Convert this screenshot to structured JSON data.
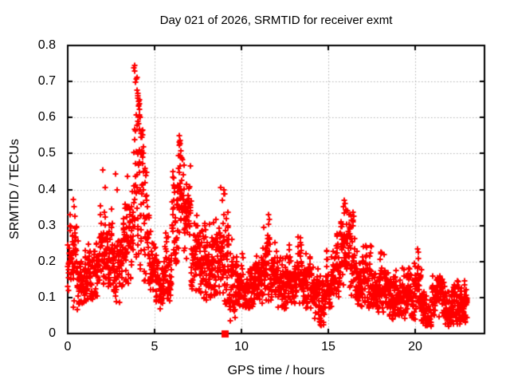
{
  "chart_data": {
    "type": "scatter",
    "title": "Day 021 of 2026, SRMTID for receiver exmt",
    "xlabel": "GPS time / hours",
    "ylabel": "SRMTID / TECUs",
    "xlim": [
      0,
      24
    ],
    "ylim": [
      0,
      0.8
    ],
    "xticks": [
      0,
      5,
      10,
      15,
      20
    ],
    "yticks": [
      0,
      0.1,
      0.2,
      0.3,
      0.4,
      0.5,
      0.6,
      0.7,
      0.8
    ],
    "xtick_labels": [
      "0",
      "5",
      "10",
      "15",
      "20"
    ],
    "ytick_labels": [
      "0",
      "0.1",
      "0.2",
      "0.3",
      "0.4",
      "0.5",
      "0.6",
      "0.7",
      "0.8"
    ],
    "grid": true,
    "legend": "none",
    "background": "#ffffff",
    "axis_color": "#000000",
    "grid_color": "#b3b3b3",
    "series": [
      {
        "name": "SRMTID",
        "marker": "plus",
        "color": "#ff0000",
        "samples_per_hour": 115,
        "time_range_hours": [
          0,
          23.0
        ],
        "envelope_bins": [
          {
            "t0": 0.0,
            "t1": 0.3,
            "mean": 0.2,
            "sd": 0.055,
            "min": 0.1,
            "max": 0.335
          },
          {
            "t0": 0.3,
            "t1": 0.6,
            "mean": 0.17,
            "sd": 0.06,
            "min": 0.065,
            "max": 0.375
          },
          {
            "t0": 0.6,
            "t1": 1.0,
            "mean": 0.165,
            "sd": 0.045,
            "min": 0.08,
            "max": 0.28
          },
          {
            "t0": 1.0,
            "t1": 1.4,
            "mean": 0.155,
            "sd": 0.04,
            "min": 0.09,
            "max": 0.26
          },
          {
            "t0": 1.4,
            "t1": 1.8,
            "mean": 0.18,
            "sd": 0.045,
            "min": 0.1,
            "max": 0.3
          },
          {
            "t0": 1.8,
            "t1": 2.2,
            "mean": 0.235,
            "sd": 0.06,
            "min": 0.12,
            "max": 0.43
          },
          {
            "t0": 2.2,
            "t1": 2.6,
            "mean": 0.245,
            "sd": 0.06,
            "min": 0.13,
            "max": 0.42
          },
          {
            "t0": 2.6,
            "t1": 3.0,
            "mean": 0.185,
            "sd": 0.05,
            "min": 0.08,
            "max": 0.33
          },
          {
            "t0": 3.0,
            "t1": 3.4,
            "mean": 0.22,
            "sd": 0.05,
            "min": 0.12,
            "max": 0.36
          },
          {
            "t0": 3.4,
            "t1": 3.8,
            "mean": 0.27,
            "sd": 0.07,
            "min": 0.14,
            "max": 0.46
          },
          {
            "t0": 3.8,
            "t1": 4.1,
            "mean": 0.45,
            "sd": 0.17,
            "min": 0.2,
            "max": 0.745
          },
          {
            "t0": 4.1,
            "t1": 4.35,
            "mean": 0.38,
            "sd": 0.15,
            "min": 0.17,
            "max": 0.7
          },
          {
            "t0": 4.35,
            "t1": 4.7,
            "mean": 0.28,
            "sd": 0.09,
            "min": 0.14,
            "max": 0.5
          },
          {
            "t0": 4.7,
            "t1": 5.1,
            "mean": 0.17,
            "sd": 0.05,
            "min": 0.09,
            "max": 0.29
          },
          {
            "t0": 5.1,
            "t1": 5.6,
            "mean": 0.13,
            "sd": 0.04,
            "min": 0.065,
            "max": 0.21
          },
          {
            "t0": 5.6,
            "t1": 6.0,
            "mean": 0.17,
            "sd": 0.05,
            "min": 0.09,
            "max": 0.28
          },
          {
            "t0": 6.0,
            "t1": 6.3,
            "mean": 0.3,
            "sd": 0.08,
            "min": 0.17,
            "max": 0.46
          },
          {
            "t0": 6.3,
            "t1": 6.7,
            "mean": 0.4,
            "sd": 0.08,
            "min": 0.23,
            "max": 0.55
          },
          {
            "t0": 6.7,
            "t1": 7.1,
            "mean": 0.32,
            "sd": 0.07,
            "min": 0.17,
            "max": 0.47
          },
          {
            "t0": 7.1,
            "t1": 7.5,
            "mean": 0.22,
            "sd": 0.055,
            "min": 0.12,
            "max": 0.36
          },
          {
            "t0": 7.5,
            "t1": 8.1,
            "mean": 0.18,
            "sd": 0.055,
            "min": 0.09,
            "max": 0.37
          },
          {
            "t0": 8.1,
            "t1": 8.5,
            "mean": 0.2,
            "sd": 0.05,
            "min": 0.1,
            "max": 0.31
          },
          {
            "t0": 8.5,
            "t1": 9.0,
            "mean": 0.24,
            "sd": 0.065,
            "min": 0.11,
            "max": 0.41
          },
          {
            "t0": 9.0,
            "t1": 9.3,
            "mean": 0.2,
            "sd": 0.07,
            "min": 0.08,
            "max": 0.4
          },
          {
            "t0": 9.3,
            "t1": 9.7,
            "mean": 0.13,
            "sd": 0.05,
            "min": 0.03,
            "max": 0.3
          },
          {
            "t0": 9.7,
            "t1": 10.2,
            "mean": 0.145,
            "sd": 0.04,
            "min": 0.07,
            "max": 0.25
          },
          {
            "t0": 10.2,
            "t1": 10.7,
            "mean": 0.135,
            "sd": 0.035,
            "min": 0.07,
            "max": 0.22
          },
          {
            "t0": 10.7,
            "t1": 11.2,
            "mean": 0.15,
            "sd": 0.04,
            "min": 0.08,
            "max": 0.25
          },
          {
            "t0": 11.2,
            "t1": 11.7,
            "mean": 0.17,
            "sd": 0.055,
            "min": 0.09,
            "max": 0.33
          },
          {
            "t0": 11.7,
            "t1": 12.1,
            "mean": 0.15,
            "sd": 0.045,
            "min": 0.08,
            "max": 0.26
          },
          {
            "t0": 12.1,
            "t1": 12.6,
            "mean": 0.125,
            "sd": 0.035,
            "min": 0.06,
            "max": 0.21
          },
          {
            "t0": 12.6,
            "t1": 13.0,
            "mean": 0.15,
            "sd": 0.04,
            "min": 0.08,
            "max": 0.25
          },
          {
            "t0": 13.0,
            "t1": 13.5,
            "mean": 0.165,
            "sd": 0.045,
            "min": 0.08,
            "max": 0.27
          },
          {
            "t0": 13.5,
            "t1": 14.0,
            "mean": 0.135,
            "sd": 0.04,
            "min": 0.06,
            "max": 0.23
          },
          {
            "t0": 14.0,
            "t1": 14.45,
            "mean": 0.115,
            "sd": 0.04,
            "min": 0.04,
            "max": 0.21
          },
          {
            "t0": 14.45,
            "t1": 14.8,
            "mean": 0.09,
            "sd": 0.04,
            "min": 0.02,
            "max": 0.17
          },
          {
            "t0": 14.8,
            "t1": 15.3,
            "mean": 0.145,
            "sd": 0.04,
            "min": 0.07,
            "max": 0.24
          },
          {
            "t0": 15.3,
            "t1": 15.7,
            "mean": 0.19,
            "sd": 0.055,
            "min": 0.1,
            "max": 0.31
          },
          {
            "t0": 15.7,
            "t1": 16.2,
            "mean": 0.25,
            "sd": 0.06,
            "min": 0.13,
            "max": 0.37
          },
          {
            "t0": 16.2,
            "t1": 16.6,
            "mean": 0.21,
            "sd": 0.06,
            "min": 0.1,
            "max": 0.34
          },
          {
            "t0": 16.6,
            "t1": 17.0,
            "mean": 0.15,
            "sd": 0.04,
            "min": 0.07,
            "max": 0.24
          },
          {
            "t0": 17.0,
            "t1": 17.5,
            "mean": 0.15,
            "sd": 0.045,
            "min": 0.07,
            "max": 0.245
          },
          {
            "t0": 17.5,
            "t1": 18.0,
            "mean": 0.125,
            "sd": 0.04,
            "min": 0.05,
            "max": 0.22
          },
          {
            "t0": 18.0,
            "t1": 18.5,
            "mean": 0.135,
            "sd": 0.04,
            "min": 0.06,
            "max": 0.24
          },
          {
            "t0": 18.5,
            "t1": 19.0,
            "mean": 0.105,
            "sd": 0.035,
            "min": 0.04,
            "max": 0.18
          },
          {
            "t0": 19.0,
            "t1": 19.4,
            "mean": 0.115,
            "sd": 0.04,
            "min": 0.05,
            "max": 0.19
          },
          {
            "t0": 19.4,
            "t1": 20.0,
            "mean": 0.115,
            "sd": 0.045,
            "min": 0.04,
            "max": 0.22
          },
          {
            "t0": 20.0,
            "t1": 20.35,
            "mean": 0.13,
            "sd": 0.05,
            "min": 0.05,
            "max": 0.235
          },
          {
            "t0": 20.35,
            "t1": 21.0,
            "mean": 0.075,
            "sd": 0.03,
            "min": 0.02,
            "max": 0.14
          },
          {
            "t0": 21.0,
            "t1": 21.7,
            "mean": 0.1,
            "sd": 0.033,
            "min": 0.04,
            "max": 0.16
          },
          {
            "t0": 21.7,
            "t1": 22.2,
            "mean": 0.075,
            "sd": 0.03,
            "min": 0.02,
            "max": 0.14
          },
          {
            "t0": 22.2,
            "t1": 23.0,
            "mean": 0.085,
            "sd": 0.032,
            "min": 0.025,
            "max": 0.15
          }
        ],
        "notable_points": [
          [
            0.33,
            0.372
          ],
          [
            0.36,
            0.352
          ],
          [
            2.0,
            0.455
          ],
          [
            2.15,
            0.405
          ],
          [
            2.75,
            0.443
          ],
          [
            2.84,
            0.4
          ],
          [
            3.82,
            0.737
          ],
          [
            3.85,
            0.745
          ],
          [
            3.84,
            0.728
          ],
          [
            3.95,
            0.708
          ],
          [
            3.97,
            0.712
          ],
          [
            4.0,
            0.676
          ],
          [
            4.02,
            0.667
          ],
          [
            4.04,
            0.66
          ],
          [
            4.06,
            0.653
          ],
          [
            4.08,
            0.645
          ],
          [
            4.1,
            0.631
          ],
          [
            4.13,
            0.622
          ],
          [
            4.12,
            0.607
          ],
          [
            4.17,
            0.6
          ],
          [
            4.1,
            0.583
          ],
          [
            4.15,
            0.568
          ],
          [
            4.2,
            0.556
          ],
          [
            4.22,
            0.545
          ],
          [
            4.12,
            0.51
          ],
          [
            4.18,
            0.502
          ],
          [
            4.25,
            0.507
          ],
          [
            6.42,
            0.55
          ],
          [
            6.44,
            0.532
          ],
          [
            6.45,
            0.528
          ],
          [
            6.46,
            0.536
          ],
          [
            6.43,
            0.522
          ],
          [
            6.38,
            0.495
          ],
          [
            6.52,
            0.49
          ],
          [
            8.82,
            0.405
          ],
          [
            9.0,
            0.4
          ],
          [
            9.04,
            0.388
          ],
          [
            8.9,
            0.37
          ],
          [
            11.55,
            0.33
          ],
          [
            11.6,
            0.318
          ],
          [
            11.57,
            0.304
          ],
          [
            14.5,
            0.04
          ],
          [
            14.55,
            0.025
          ],
          [
            14.6,
            0.034
          ],
          [
            15.92,
            0.37
          ],
          [
            15.97,
            0.362
          ],
          [
            15.88,
            0.352
          ],
          [
            16.03,
            0.344
          ],
          [
            16.3,
            0.33
          ],
          [
            16.34,
            0.315
          ],
          [
            22.45,
            0.135
          ],
          [
            22.55,
            0.128
          ]
        ]
      }
    ],
    "special_points": [
      {
        "x": 9.06,
        "y": 0.0,
        "marker": "filled-square",
        "color": "#ff0000",
        "size": 9
      }
    ]
  }
}
